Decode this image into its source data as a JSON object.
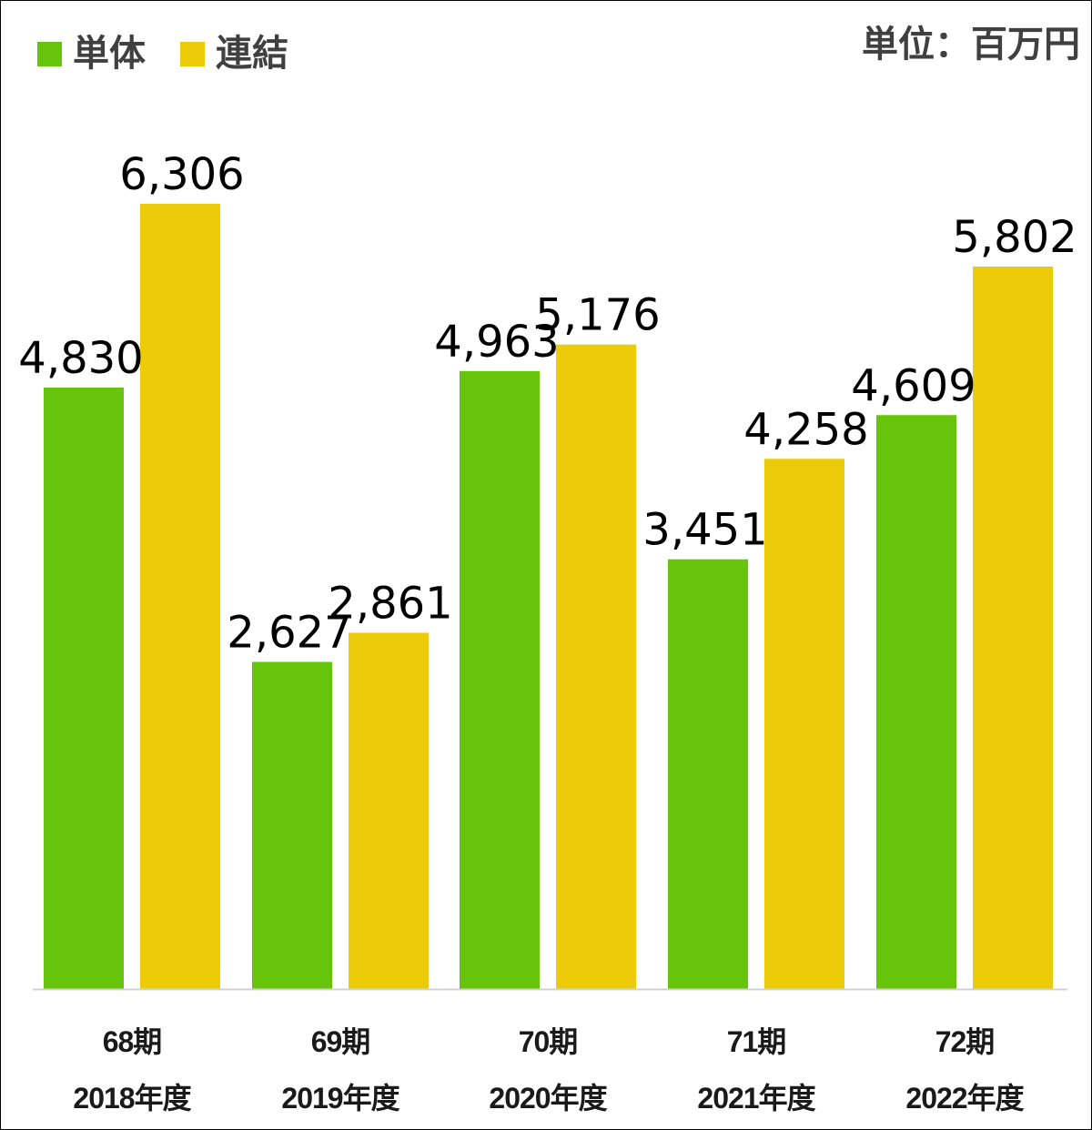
{
  "chart_data": {
    "type": "bar",
    "unit_label": "単位：百万円",
    "categories": [
      {
        "period": "68期",
        "year": "2018年度"
      },
      {
        "period": "69期",
        "year": "2019年度"
      },
      {
        "period": "70期",
        "year": "2020年度"
      },
      {
        "period": "71期",
        "year": "2021年度"
      },
      {
        "period": "72期",
        "year": "2022年度"
      }
    ],
    "series": [
      {
        "name": "単体",
        "color": "#66c40a",
        "values": [
          4830,
          2627,
          4963,
          3451,
          4609
        ],
        "labels": [
          "4,830",
          "2,627",
          "4,963",
          "3,451",
          "4,609"
        ]
      },
      {
        "name": "連結",
        "color": "#eccb08",
        "values": [
          6306,
          2861,
          5176,
          4258,
          5802
        ],
        "labels": [
          "6,306",
          "2,861",
          "5,176",
          "4,258",
          "5,802"
        ]
      }
    ],
    "ylim": [
      0,
      7000
    ],
    "legend": "top-left",
    "grid": false
  }
}
